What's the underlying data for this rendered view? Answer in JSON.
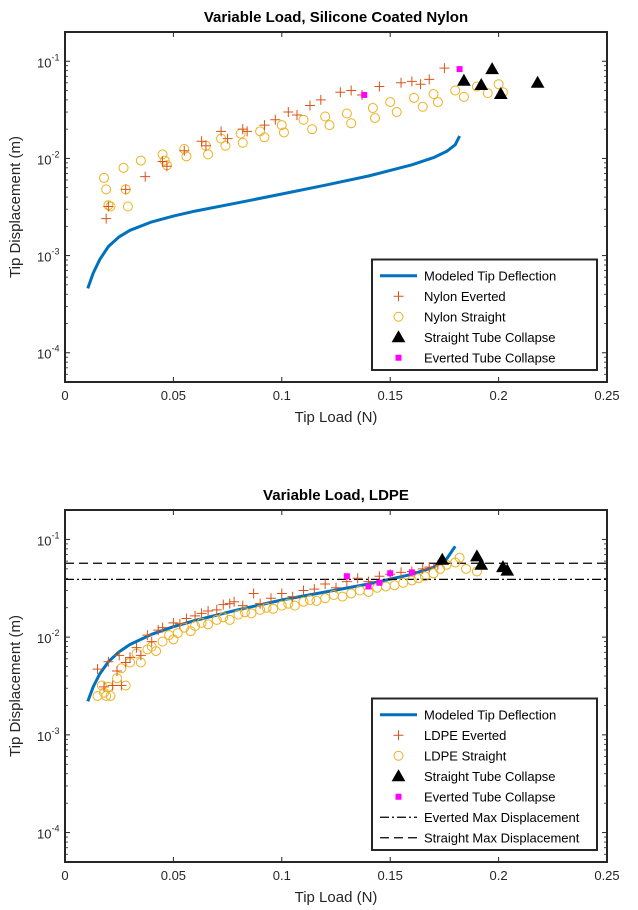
{
  "chart_data": [
    {
      "type": "scatter",
      "title": "Variable Load, Silicone Coated Nylon",
      "xlabel": "Tip Load (N)",
      "ylabel": "Tip Displacement (m)",
      "xlim": [
        0,
        0.25
      ],
      "ylim": [
        5e-05,
        0.2
      ],
      "yscale": "log",
      "xticks": [
        "0",
        "0.05",
        "0.1",
        "0.15",
        "0.2",
        "0.25"
      ],
      "yticks": [
        "10^-4",
        "10^-3",
        "10^-2",
        "10^-1"
      ],
      "grid": false,
      "legend_position": "bottom-right",
      "series": [
        {
          "name": "Modeled Tip Deflection",
          "marker": "line",
          "color": "#0072BD",
          "x": [
            0.0105,
            0.013,
            0.016,
            0.02,
            0.025,
            0.03,
            0.04,
            0.05,
            0.06,
            0.08,
            0.1,
            0.12,
            0.14,
            0.16,
            0.17,
            0.176,
            0.18,
            0.182
          ],
          "y": [
            0.00046,
            0.00066,
            0.00091,
            0.00124,
            0.00156,
            0.00182,
            0.00222,
            0.00255,
            0.00287,
            0.0035,
            0.0043,
            0.0053,
            0.0066,
            0.0086,
            0.0102,
            0.0118,
            0.0138,
            0.017
          ]
        },
        {
          "name": "Nylon Everted",
          "marker": "plus",
          "color": "#D95319",
          "x": [
            0.019,
            0.02,
            0.028,
            0.037,
            0.045,
            0.047,
            0.055,
            0.063,
            0.065,
            0.072,
            0.075,
            0.082,
            0.084,
            0.092,
            0.097,
            0.103,
            0.107,
            0.113,
            0.118,
            0.127,
            0.132,
            0.137,
            0.145,
            0.155,
            0.16,
            0.164,
            0.168,
            0.175
          ],
          "y": [
            0.0024,
            0.0032,
            0.0048,
            0.0065,
            0.0093,
            0.0083,
            0.012,
            0.015,
            0.0135,
            0.019,
            0.016,
            0.02,
            0.019,
            0.022,
            0.025,
            0.03,
            0.028,
            0.035,
            0.04,
            0.048,
            0.05,
            0.045,
            0.055,
            0.06,
            0.062,
            0.058,
            0.065,
            0.085
          ]
        },
        {
          "name": "Nylon Straight",
          "marker": "circle",
          "color": "#EDB120",
          "x": [
            0.018,
            0.019,
            0.02,
            0.021,
            0.027,
            0.028,
            0.029,
            0.035,
            0.045,
            0.046,
            0.047,
            0.055,
            0.056,
            0.065,
            0.066,
            0.072,
            0.074,
            0.081,
            0.082,
            0.09,
            0.092,
            0.1,
            0.101,
            0.11,
            0.114,
            0.12,
            0.122,
            0.13,
            0.132,
            0.142,
            0.143,
            0.15,
            0.153,
            0.161,
            0.165,
            0.17,
            0.172,
            0.18,
            0.184,
            0.19,
            0.195,
            0.2,
            0.202
          ],
          "y": [
            0.0063,
            0.0048,
            0.0033,
            0.0032,
            0.008,
            0.0048,
            0.0032,
            0.0095,
            0.011,
            0.0095,
            0.0085,
            0.0125,
            0.0105,
            0.0135,
            0.011,
            0.016,
            0.0135,
            0.018,
            0.0145,
            0.019,
            0.0165,
            0.022,
            0.0185,
            0.025,
            0.02,
            0.027,
            0.022,
            0.029,
            0.023,
            0.033,
            0.026,
            0.038,
            0.03,
            0.042,
            0.034,
            0.046,
            0.038,
            0.05,
            0.043,
            0.055,
            0.047,
            0.058,
            0.048
          ]
        },
        {
          "name": "Straight Tube Collapse",
          "marker": "triangle",
          "color": "#000000",
          "x": [
            0.184,
            0.192,
            0.197,
            0.201,
            0.218
          ],
          "y": [
            0.063,
            0.057,
            0.083,
            0.046,
            0.06
          ]
        },
        {
          "name": "Everted Tube Collapse",
          "marker": "square",
          "color": "#FF00FF",
          "x": [
            0.138,
            0.182
          ],
          "y": [
            0.045,
            0.083
          ]
        }
      ]
    },
    {
      "type": "scatter",
      "title": "Variable Load, LDPE",
      "xlabel": "Tip Load (N)",
      "ylabel": "Tip Displacement (m)",
      "xlim": [
        0,
        0.25
      ],
      "ylim": [
        5e-05,
        0.2
      ],
      "yscale": "log",
      "xticks": [
        "0",
        "0.05",
        "0.1",
        "0.15",
        "0.2",
        "0.25"
      ],
      "yticks": [
        "10^-4",
        "10^-3",
        "10^-2",
        "10^-1"
      ],
      "grid": false,
      "legend_position": "bottom-right",
      "series": [
        {
          "name": "Modeled Tip Deflection",
          "marker": "line",
          "color": "#0072BD",
          "x": [
            0.0105,
            0.013,
            0.016,
            0.02,
            0.025,
            0.03,
            0.04,
            0.05,
            0.06,
            0.08,
            0.1,
            0.12,
            0.14,
            0.16,
            0.17,
            0.176,
            0.18
          ],
          "y": [
            0.0022,
            0.0031,
            0.0042,
            0.0056,
            0.0071,
            0.0084,
            0.0107,
            0.0128,
            0.0148,
            0.0191,
            0.024,
            0.029,
            0.035,
            0.044,
            0.052,
            0.063,
            0.085
          ]
        },
        {
          "name": "LDPE Everted",
          "marker": "plus",
          "color": "#D95319",
          "x": [
            0.015,
            0.018,
            0.02,
            0.022,
            0.024,
            0.025,
            0.026,
            0.028,
            0.03,
            0.033,
            0.035,
            0.038,
            0.04,
            0.043,
            0.045,
            0.05,
            0.053,
            0.056,
            0.06,
            0.063,
            0.066,
            0.07,
            0.073,
            0.076,
            0.078,
            0.082,
            0.087,
            0.09,
            0.095,
            0.1,
            0.105,
            0.11,
            0.115,
            0.12,
            0.125,
            0.13,
            0.135,
            0.14,
            0.145,
            0.15,
            0.155,
            0.16,
            0.165,
            0.168,
            0.172
          ],
          "y": [
            0.0047,
            0.0031,
            0.0056,
            0.0032,
            0.0045,
            0.0065,
            0.0032,
            0.0055,
            0.0062,
            0.0078,
            0.0065,
            0.0105,
            0.009,
            0.0118,
            0.0125,
            0.014,
            0.0137,
            0.0155,
            0.0165,
            0.0175,
            0.0185,
            0.019,
            0.0215,
            0.022,
            0.023,
            0.021,
            0.028,
            0.022,
            0.025,
            0.028,
            0.026,
            0.03,
            0.031,
            0.035,
            0.032,
            0.037,
            0.04,
            0.037,
            0.042,
            0.044,
            0.046,
            0.047,
            0.05,
            0.052,
            0.055
          ]
        },
        {
          "name": "LDPE Straight",
          "marker": "circle",
          "color": "#EDB120",
          "x": [
            0.015,
            0.017,
            0.018,
            0.019,
            0.02,
            0.021,
            0.024,
            0.026,
            0.028,
            0.03,
            0.033,
            0.035,
            0.038,
            0.04,
            0.042,
            0.045,
            0.048,
            0.05,
            0.052,
            0.055,
            0.058,
            0.06,
            0.063,
            0.066,
            0.07,
            0.073,
            0.076,
            0.08,
            0.083,
            0.086,
            0.09,
            0.093,
            0.096,
            0.1,
            0.103,
            0.106,
            0.11,
            0.113,
            0.116,
            0.12,
            0.124,
            0.128,
            0.132,
            0.136,
            0.14,
            0.144,
            0.148,
            0.152,
            0.156,
            0.16,
            0.163,
            0.166,
            0.17,
            0.173,
            0.176,
            0.18,
            0.182,
            0.185,
            0.19
          ],
          "y": [
            0.0025,
            0.0032,
            0.0027,
            0.0025,
            0.0031,
            0.0025,
            0.0038,
            0.0048,
            0.0032,
            0.0055,
            0.0068,
            0.0055,
            0.0075,
            0.008,
            0.0072,
            0.009,
            0.0105,
            0.0095,
            0.011,
            0.0125,
            0.0115,
            0.013,
            0.014,
            0.0135,
            0.015,
            0.016,
            0.015,
            0.017,
            0.018,
            0.0175,
            0.019,
            0.02,
            0.0195,
            0.021,
            0.022,
            0.021,
            0.023,
            0.024,
            0.0235,
            0.025,
            0.027,
            0.026,
            0.028,
            0.03,
            0.029,
            0.032,
            0.033,
            0.034,
            0.036,
            0.038,
            0.04,
            0.042,
            0.045,
            0.05,
            0.055,
            0.058,
            0.065,
            0.05,
            0.047
          ]
        },
        {
          "name": "Straight Tube Collapse",
          "marker": "triangle",
          "color": "#000000",
          "x": [
            0.174,
            0.19,
            0.192,
            0.202,
            0.204
          ],
          "y": [
            0.062,
            0.067,
            0.055,
            0.052,
            0.048
          ]
        },
        {
          "name": "Everted Tube Collapse",
          "marker": "square",
          "color": "#FF00FF",
          "x": [
            0.13,
            0.14,
            0.145,
            0.15,
            0.16
          ],
          "y": [
            0.042,
            0.033,
            0.036,
            0.045,
            0.046
          ]
        },
        {
          "name": "Everted Max Displacement",
          "marker": "dashdot",
          "color": "#000000",
          "y": 0.039
        },
        {
          "name": "Straight Max Displacement",
          "marker": "dashed",
          "color": "#000000",
          "y": 0.057
        }
      ]
    }
  ]
}
